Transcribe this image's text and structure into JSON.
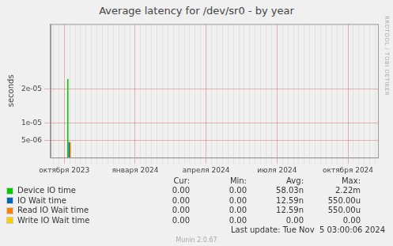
{
  "chart_data": {
    "type": "bar",
    "title": "Average latency for /dev/sr0 - by year",
    "y_label": "seconds",
    "side_text": "RRDTOOL / TOBI OETIKER",
    "footer": "Last update: Tue Nov  5 03:00:06 2024",
    "credit": "Munin 2.0.67",
    "grid": true,
    "legend": "bottom",
    "stat_columns": [
      "Cur:",
      "Min:",
      "Avg:",
      "Max:"
    ],
    "categories": [
      null,
      null,
      "октября 2023",
      null,
      null,
      null,
      null,
      null,
      null,
      null,
      null,
      null,
      null,
      null,
      null,
      "января 2024",
      null,
      null,
      null,
      null,
      null,
      null,
      null,
      null,
      null,
      null,
      null,
      null,
      "апреля 2024",
      null,
      null,
      null,
      null,
      null,
      null,
      null,
      null,
      null,
      null,
      null,
      null,
      "июля 2024",
      null,
      null,
      null,
      null,
      null,
      null,
      null,
      null,
      null,
      null,
      null,
      null,
      "октября 2024",
      null,
      null,
      null,
      null,
      null
    ],
    "ylim": [
      0,
      3.9e-05
    ],
    "yticks": [
      {
        "value": 5e-06,
        "label": "5e-06"
      },
      {
        "value": 1e-05,
        "label": "1e-05"
      },
      {
        "value": 2e-05,
        "label": "2e-05"
      }
    ],
    "series": [
      {
        "name": "Device IO time",
        "color": "#00cc00",
        "stats": [
          "0.00",
          "0.00",
          "58.03n",
          "2.22m"
        ],
        "values": [
          0,
          0,
          0,
          2.3e-05,
          0,
          0,
          0,
          0,
          0,
          0,
          0,
          0,
          0,
          0,
          0,
          0,
          0,
          0,
          0,
          0,
          0,
          0,
          0,
          0,
          0,
          0,
          0,
          0,
          0,
          0,
          0,
          0,
          0,
          0,
          0,
          0,
          0,
          0,
          0,
          0,
          0,
          0,
          0,
          0,
          0,
          0,
          0,
          0,
          0,
          0,
          0,
          0,
          0,
          0,
          0,
          0,
          0,
          0,
          0,
          0
        ]
      },
      {
        "name": "IO Wait time",
        "color": "#0066b3",
        "stats": [
          "0.00",
          "0.00",
          "12.59n",
          "550.00u"
        ],
        "values": [
          0,
          0,
          0,
          4.5e-06,
          0,
          0,
          0,
          0,
          0,
          0,
          0,
          0,
          0,
          0,
          0,
          0,
          0,
          0,
          0,
          0,
          0,
          0,
          0,
          0,
          0,
          0,
          0,
          0,
          0,
          0,
          0,
          0,
          0,
          0,
          0,
          0,
          0,
          0,
          0,
          0,
          0,
          0,
          0,
          0,
          0,
          0,
          0,
          0,
          0,
          0,
          0,
          0,
          0,
          0,
          0,
          0,
          0,
          0,
          0,
          0
        ]
      },
      {
        "name": "Read IO Wait time",
        "color": "#ff8000",
        "stats": [
          "0.00",
          "0.00",
          "12.59n",
          "550.00u"
        ],
        "values": [
          0,
          0,
          0,
          4.5e-06,
          0,
          0,
          0,
          0,
          0,
          0,
          0,
          0,
          0,
          0,
          0,
          0,
          0,
          0,
          0,
          0,
          0,
          0,
          0,
          0,
          0,
          0,
          0,
          0,
          0,
          0,
          0,
          0,
          0,
          0,
          0,
          0,
          0,
          0,
          0,
          0,
          0,
          0,
          0,
          0,
          0,
          0,
          0,
          0,
          0,
          0,
          0,
          0,
          0,
          0,
          0,
          0,
          0,
          0,
          0,
          0
        ]
      },
      {
        "name": "Write IO Wait time",
        "color": "#ffcc00",
        "stats": [
          "0.00",
          "0.00",
          "0.00",
          "0.00"
        ],
        "values": [
          0,
          0,
          0,
          0,
          0,
          0,
          0,
          0,
          0,
          0,
          0,
          0,
          0,
          0,
          0,
          0,
          0,
          0,
          0,
          0,
          0,
          0,
          0,
          0,
          0,
          0,
          0,
          0,
          0,
          0,
          0,
          0,
          0,
          0,
          0,
          0,
          0,
          0,
          0,
          0,
          0,
          0,
          0,
          0,
          0,
          0,
          0,
          0,
          0,
          0,
          0,
          0,
          0,
          0,
          0,
          0,
          0,
          0,
          0,
          0
        ]
      }
    ]
  }
}
